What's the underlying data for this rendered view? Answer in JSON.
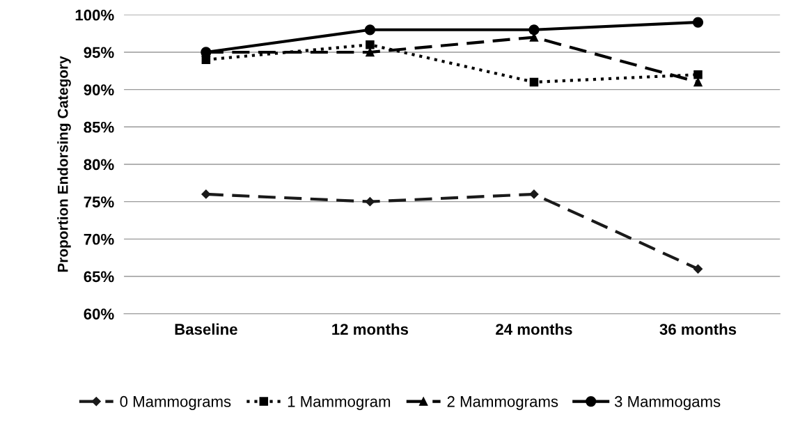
{
  "chart_data": {
    "type": "line",
    "ylabel": "Proportion Endorsing Category",
    "categories": [
      "Baseline",
      "12 months",
      "24 months",
      "36 months"
    ],
    "series": [
      {
        "name": "0 Mammograms",
        "color": "#1a1a1a",
        "values": [
          76,
          75,
          76,
          66
        ],
        "marker": "diamond",
        "line_style": "dashed"
      },
      {
        "name": "1 Mammogram",
        "color": "#000000",
        "values": [
          94,
          96,
          91,
          92
        ],
        "marker": "square",
        "line_style": "dotted"
      },
      {
        "name": "2 Mammograms",
        "color": "#000000",
        "values": [
          95,
          95,
          97,
          91
        ],
        "marker": "triangle",
        "line_style": "dashed"
      },
      {
        "name": "3 Mammogams",
        "color": "#000000",
        "values": [
          95,
          98,
          98,
          99
        ],
        "marker": "circle",
        "line_style": "solid"
      }
    ],
    "ylim": [
      60,
      100
    ],
    "yticks": [
      {
        "value": 60,
        "label": "60%"
      },
      {
        "value": 65,
        "label": "65%"
      },
      {
        "value": 70,
        "label": "70%"
      },
      {
        "value": 75,
        "label": "75%"
      },
      {
        "value": 80,
        "label": "80%"
      },
      {
        "value": 85,
        "label": "85%"
      },
      {
        "value": 90,
        "label": "90%"
      },
      {
        "value": 95,
        "label": "95%"
      },
      {
        "value": 100,
        "label": "100%"
      }
    ],
    "grid": "y",
    "legend": "bottom"
  }
}
